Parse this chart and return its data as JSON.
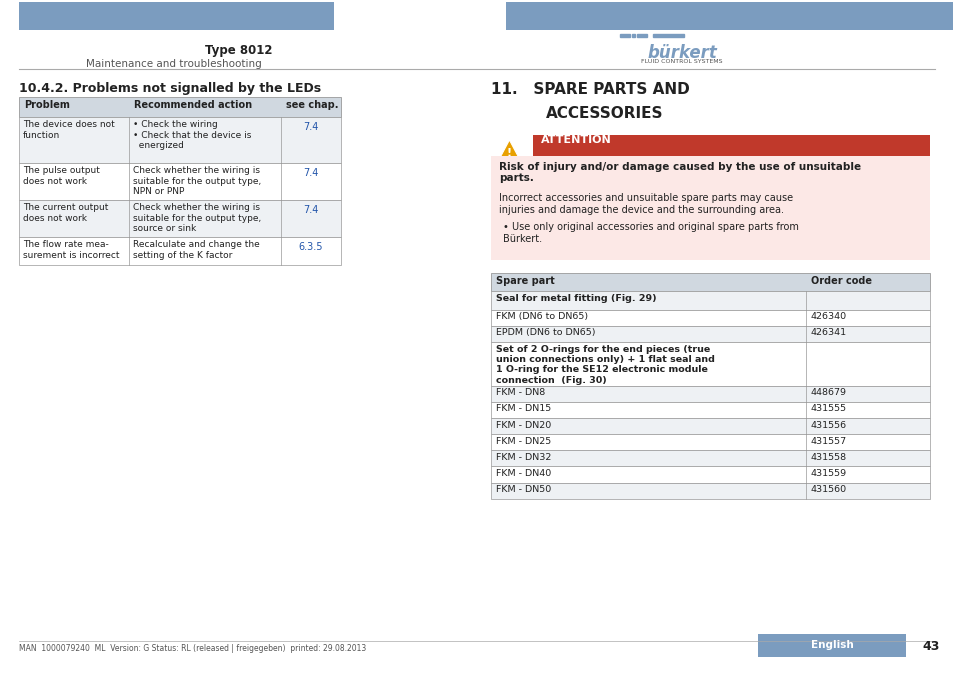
{
  "page_bg": "#ffffff",
  "header_bar_color": "#7b9cbf",
  "type_text": "Type 8012",
  "subtitle_text": "Maintenance and troubleshooting",
  "left_section_title": "10.4.2. Problems not signalled by the LEDs",
  "table1_header": [
    "Problem",
    "Recommended action",
    "see chap."
  ],
  "table1_rows": [
    [
      "The device does not\nfunction",
      "• Check the wiring\n• Check that the device is\n  energized",
      "7.4"
    ],
    [
      "The pulse output\ndoes not work",
      "Check whether the wiring is\nsuitable for the output type,\nNPN or PNP",
      "7.4"
    ],
    [
      "The current output\ndoes not work",
      "Check whether the wiring is\nsuitable for the output type,\nsource or sink",
      "7.4"
    ],
    [
      "The flow rate mea-\nsurement is incorrect",
      "Recalculate and change the\nsetting of the K factor",
      "6.3.5"
    ]
  ],
  "attention_title": "ATTENTION",
  "attention_bar_color": "#c0392b",
  "attention_bg_color": "#fce8e6",
  "attention_warning_color": "#e8a000",
  "attention_bold_text": "Risk of injury and/or damage caused by the use of unsuitable\nparts.",
  "attention_body": "Incorrect accessories and unsuitable spare parts may cause\ninjuries and damage the device and the surrounding area.",
  "attention_bullet": "Use only original accessories and original spare parts from\nBürkert.",
  "table2_header": [
    "Spare part",
    "Order code"
  ],
  "table2_rows": [
    [
      "Seal for metal fitting (Fig. 29)",
      "",
      "bold"
    ],
    [
      "FKM (DN6 to DN65)",
      "426340",
      "normal"
    ],
    [
      "EPDM (DN6 to DN65)",
      "426341",
      "normal"
    ],
    [
      "Set of 2 O-rings for the end pieces (true\nunion connections only) + 1 flat seal and\n1 O-ring for the SE12 electronic module\nconnection  (Fig. 30)",
      "",
      "bold"
    ],
    [
      "FKM - DN8",
      "448679",
      "normal"
    ],
    [
      "FKM - DN15",
      "431555",
      "normal"
    ],
    [
      "FKM - DN20",
      "431556",
      "normal"
    ],
    [
      "FKM - DN25",
      "431557",
      "normal"
    ],
    [
      "FKM - DN32",
      "431558",
      "normal"
    ],
    [
      "FKM - DN40",
      "431559",
      "normal"
    ],
    [
      "FKM - DN50",
      "431560",
      "normal"
    ]
  ],
  "footer_text": "MAN  1000079240  ML  Version: G Status: RL (released | freigegeben)  printed: 29.08.2013",
  "footer_page": "43",
  "footer_lang": "English",
  "footer_lang_bg": "#7b9cbf",
  "table_header_bg": "#d0d8e0",
  "table_row_alt_bg": "#eef1f4",
  "table_border_color": "#999999",
  "text_color": "#222222",
  "gray_text": "#555555"
}
